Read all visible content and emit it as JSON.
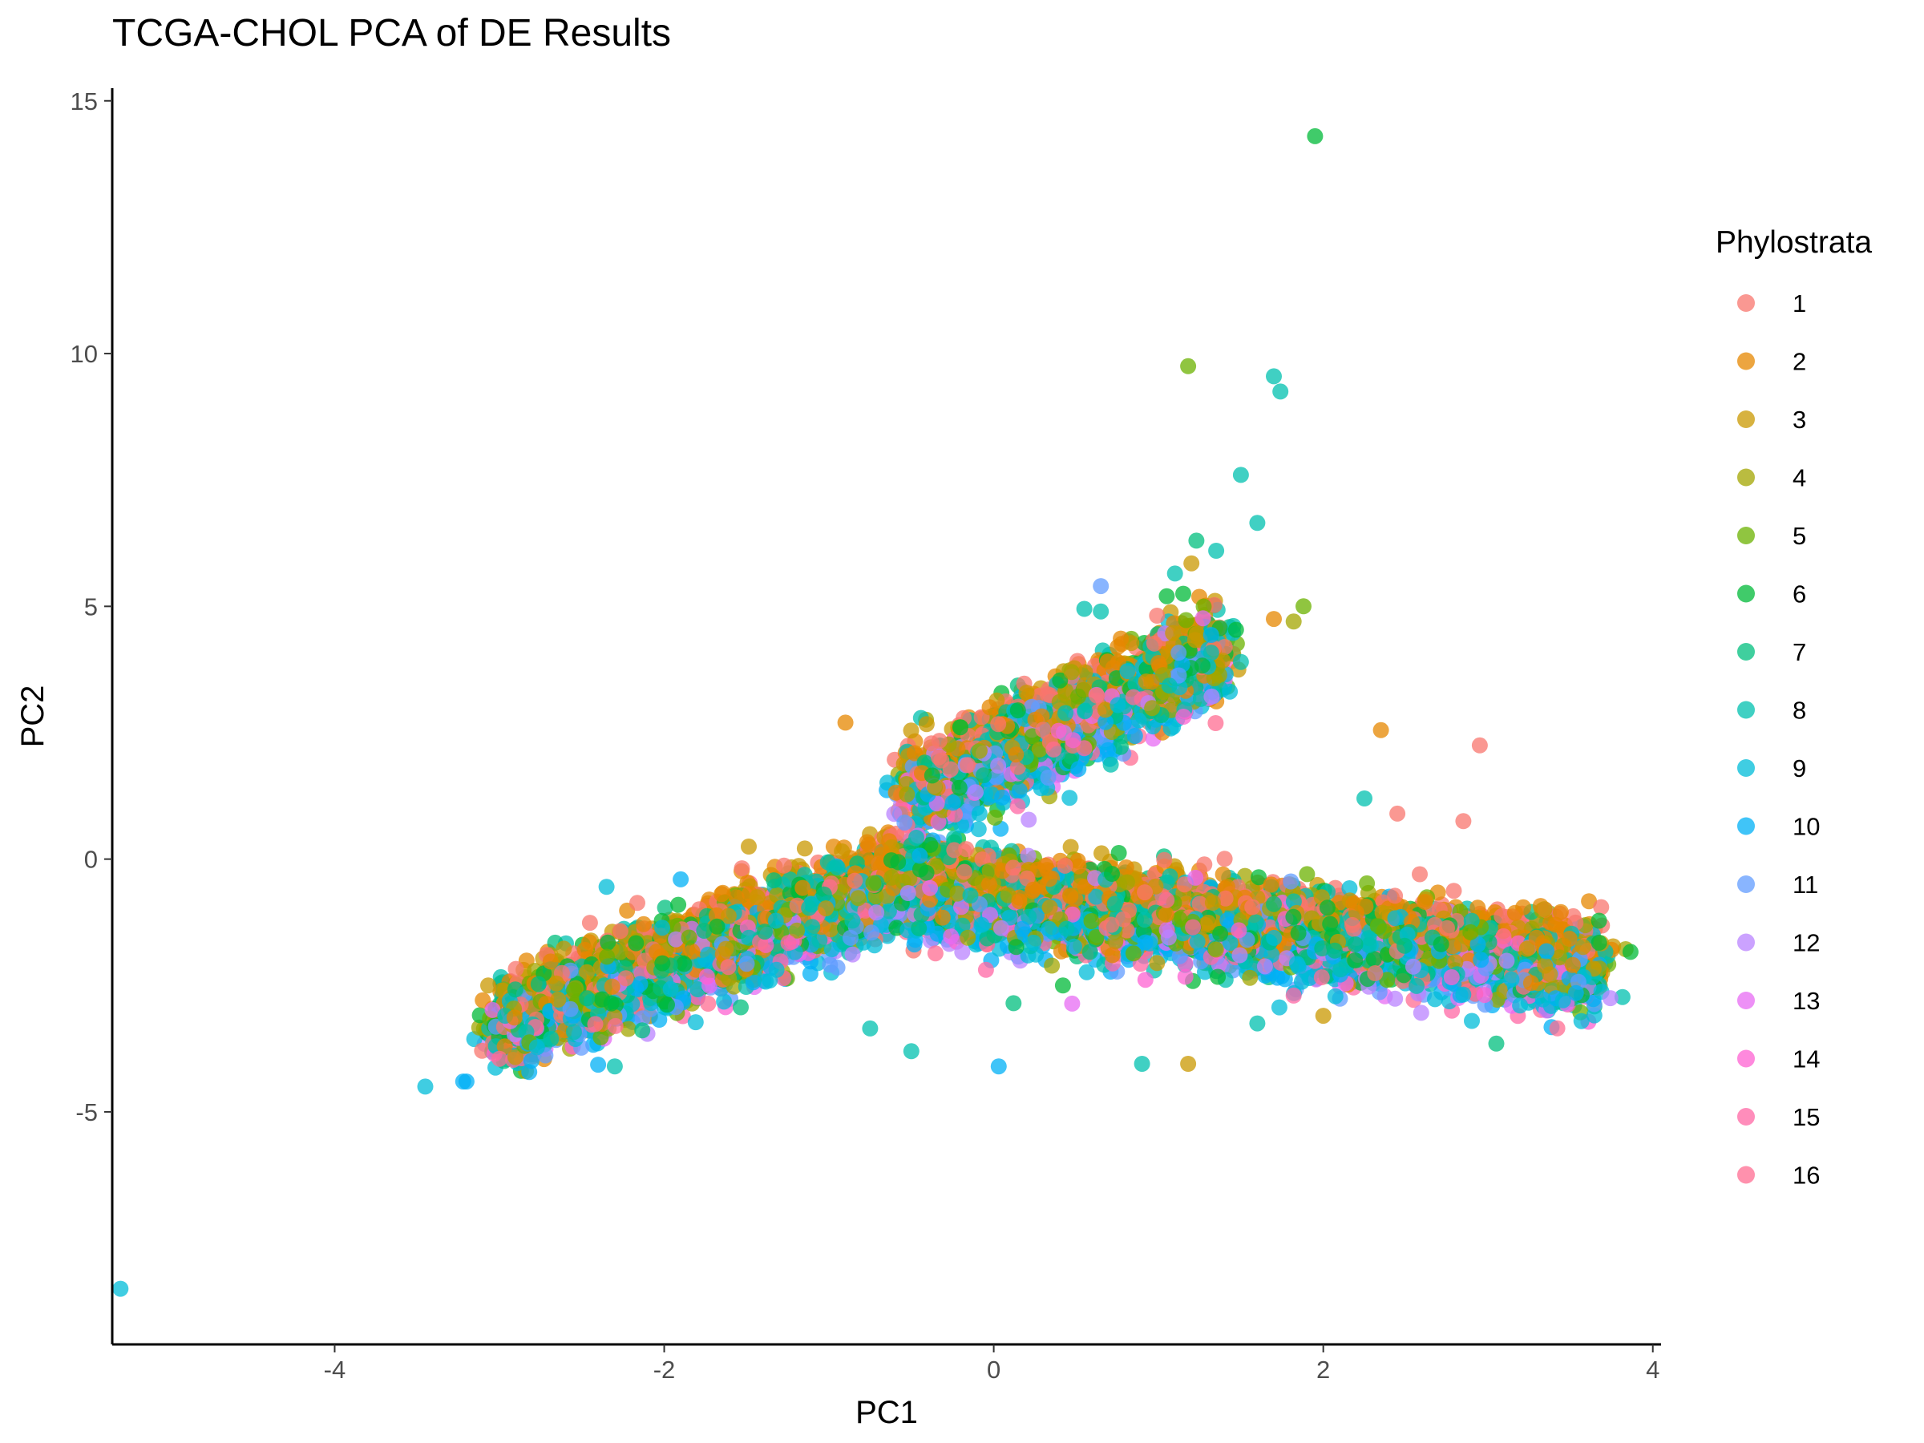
{
  "chart_data": {
    "type": "scatter",
    "title": "TCGA-CHOL PCA of DE Results",
    "xlabel": "PC1",
    "ylabel": "PC2",
    "xlim": [
      -5.35,
      4.05
    ],
    "ylim": [
      -9.6,
      15.25
    ],
    "x_ticks": [
      -4,
      -2,
      0,
      2,
      4
    ],
    "x_tick_labels": [
      "-4",
      "-2",
      "0",
      "2",
      "4"
    ],
    "y_ticks": [
      -5,
      0,
      5,
      10,
      15
    ],
    "y_tick_labels": [
      "-5",
      "0",
      "5",
      "10",
      "15"
    ],
    "grid": false,
    "legend": {
      "title": "Phylostrata",
      "placement": "right",
      "entries": [
        "1",
        "2",
        "3",
        "4",
        "5",
        "6",
        "7",
        "8",
        "9",
        "10",
        "11",
        "12",
        "13",
        "14",
        "15",
        "16"
      ]
    },
    "colors": [
      "#F8766D",
      "#E58700",
      "#C99800",
      "#A3A500",
      "#6BB100",
      "#00BA38",
      "#00BF7D",
      "#00C0AF",
      "#00BCD8",
      "#00B0F6",
      "#619CFF",
      "#B983FF",
      "#E76BF3",
      "#FD61D1",
      "#FF67A4",
      "#FF6C91"
    ],
    "point_alpha": 0.75,
    "series_point_counts": [
      1200,
      1400,
      1000,
      900,
      700,
      900,
      800,
      1200,
      1100,
      700,
      500,
      300,
      300,
      250,
      200,
      250
    ],
    "bands": [
      {
        "name": "lower-left arm",
        "x": [
          -3.0,
          -0.5
        ],
        "y": [
          -3.3,
          -0.3
        ],
        "weight": 0.33
      },
      {
        "name": "lower-right arm",
        "x": [
          -0.5,
          3.65
        ],
        "y": [
          -0.6,
          -2.1
        ],
        "weight": 0.42
      },
      {
        "name": "upper arm",
        "x": [
          -0.5,
          1.35
        ],
        "y": [
          1.3,
          4.1
        ],
        "weight": 0.25
      }
    ],
    "outliers": [
      {
        "x": 1.95,
        "y": 14.3,
        "series": 6
      },
      {
        "x": 1.18,
        "y": 9.75,
        "series": 5
      },
      {
        "x": 1.7,
        "y": 9.55,
        "series": 8
      },
      {
        "x": 1.74,
        "y": 9.25,
        "series": 8
      },
      {
        "x": 1.5,
        "y": 7.6,
        "series": 8
      },
      {
        "x": 1.6,
        "y": 6.65,
        "series": 8
      },
      {
        "x": 1.23,
        "y": 6.3,
        "series": 7
      },
      {
        "x": 1.35,
        "y": 6.1,
        "series": 8
      },
      {
        "x": 1.1,
        "y": 5.65,
        "series": 8
      },
      {
        "x": 1.2,
        "y": 5.85,
        "series": 3
      },
      {
        "x": 0.65,
        "y": 5.4,
        "series": 11
      },
      {
        "x": 1.15,
        "y": 5.25,
        "series": 6
      },
      {
        "x": 1.05,
        "y": 5.2,
        "series": 6
      },
      {
        "x": 1.88,
        "y": 5.0,
        "series": 5
      },
      {
        "x": 1.82,
        "y": 4.7,
        "series": 4
      },
      {
        "x": 1.7,
        "y": 4.75,
        "series": 2
      },
      {
        "x": 0.55,
        "y": 4.95,
        "series": 8
      },
      {
        "x": 0.65,
        "y": 4.9,
        "series": 8
      },
      {
        "x": 1.5,
        "y": 3.9,
        "series": 8
      },
      {
        "x": -0.9,
        "y": 2.7,
        "series": 2
      },
      {
        "x": 2.35,
        "y": 2.55,
        "series": 2
      },
      {
        "x": 2.95,
        "y": 2.25,
        "series": 1
      },
      {
        "x": 2.25,
        "y": 1.2,
        "series": 8
      },
      {
        "x": 2.45,
        "y": 0.9,
        "series": 1
      },
      {
        "x": 2.85,
        "y": 0.75,
        "series": 1
      },
      {
        "x": -2.35,
        "y": -0.55,
        "series": 9
      },
      {
        "x": -1.9,
        "y": -0.4,
        "series": 10
      },
      {
        "x": -0.75,
        "y": -3.35,
        "series": 8
      },
      {
        "x": -0.5,
        "y": -3.8,
        "series": 8
      },
      {
        "x": 0.03,
        "y": -4.1,
        "series": 10
      },
      {
        "x": 0.9,
        "y": -4.05,
        "series": 8
      },
      {
        "x": 1.18,
        "y": -4.05,
        "series": 3
      },
      {
        "x": -2.3,
        "y": -4.1,
        "series": 8
      },
      {
        "x": -3.45,
        "y": -4.5,
        "series": 9
      },
      {
        "x": -3.22,
        "y": -4.4,
        "series": 10
      },
      {
        "x": -3.2,
        "y": -4.4,
        "series": 10
      },
      {
        "x": -3.0,
        "y": -3.95,
        "series": 16
      },
      {
        "x": 1.6,
        "y": -3.25,
        "series": 8
      },
      {
        "x": 3.05,
        "y": -3.65,
        "series": 7
      },
      {
        "x": 0.12,
        "y": -2.85,
        "series": 7
      },
      {
        "x": 0.42,
        "y": -2.5,
        "series": 6
      },
      {
        "x": 1.82,
        "y": -2.7,
        "series": 15
      },
      {
        "x": 2.0,
        "y": -3.1,
        "series": 3
      },
      {
        "x": -5.3,
        "y": -8.5,
        "series": 9
      }
    ]
  }
}
